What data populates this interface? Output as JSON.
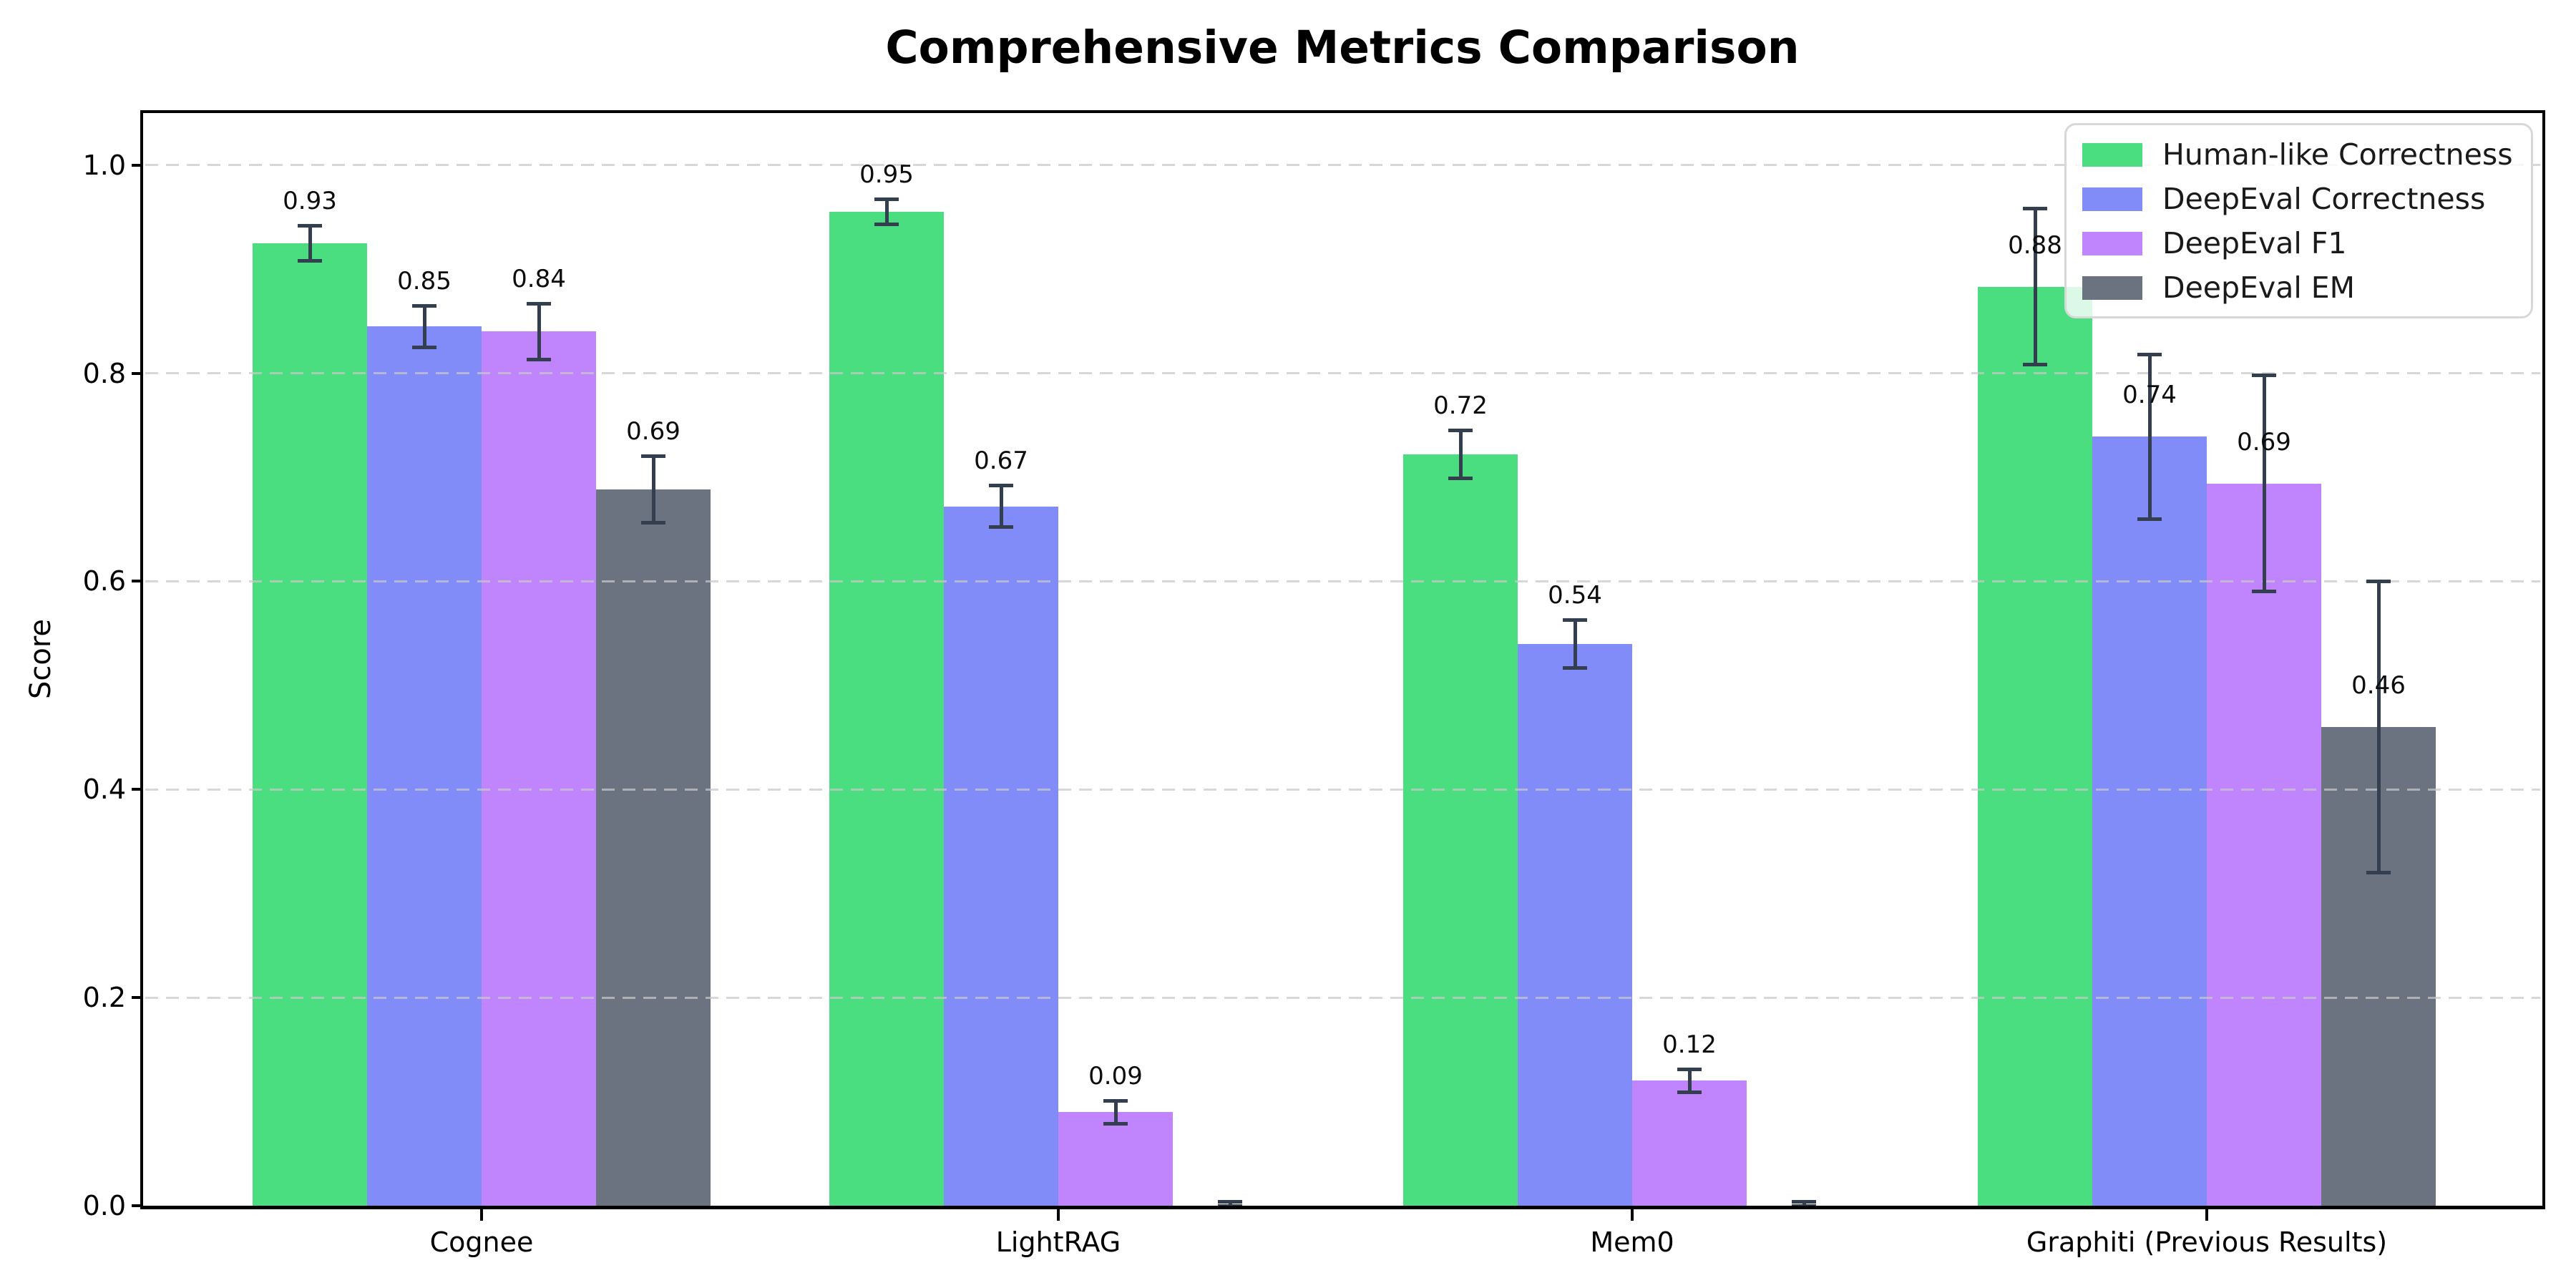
{
  "chart_data": {
    "type": "bar",
    "title": "Comprehensive Metrics Comparison",
    "xlabel": "",
    "ylabel": "Score",
    "categories": [
      "Cognee",
      "LightRAG",
      "Mem0",
      "Graphiti (Previous Results)"
    ],
    "series": [
      {
        "name": "Human-like Correctness",
        "color": "#4ade80",
        "values": [
          0.925,
          0.955,
          0.722,
          0.883
        ],
        "errors": [
          0.017,
          0.012,
          0.023,
          0.075
        ],
        "labels": [
          "0.93",
          "0.95",
          "0.72",
          "0.88"
        ]
      },
      {
        "name": "DeepEval Correctness",
        "color": "#818cf8",
        "values": [
          0.845,
          0.672,
          0.54,
          0.739
        ],
        "errors": [
          0.02,
          0.02,
          0.023,
          0.079
        ],
        "labels": [
          "0.85",
          "0.67",
          "0.54",
          "0.74"
        ]
      },
      {
        "name": "DeepEval F1",
        "color": "#c084fc",
        "values": [
          0.84,
          0.09,
          0.12,
          0.694
        ],
        "errors": [
          0.027,
          0.011,
          0.011,
          0.104
        ],
        "labels": [
          "0.84",
          "0.09",
          "0.12",
          "0.69"
        ]
      },
      {
        "name": "DeepEval EM",
        "color": "#6b7280",
        "values": [
          0.688,
          0.0,
          0.0,
          0.46
        ],
        "errors": [
          0.032,
          0.004,
          0.004,
          0.14
        ],
        "labels": [
          "0.69",
          "",
          "",
          "0.46"
        ]
      }
    ],
    "ytick_labels": [
      "0.0",
      "0.2",
      "0.4",
      "0.6",
      "0.8",
      "1.0"
    ],
    "ytick_values": [
      0.0,
      0.2,
      0.4,
      0.6,
      0.8,
      1.0
    ],
    "ylim": [
      0,
      1.05
    ],
    "grid": "horizontal dashed",
    "legend_position": "upper right",
    "style_colors": {
      "error_bar": "#333f4e",
      "gridline": "rgba(200,200,200,0.72)",
      "spine": "#000000",
      "background": "#ffffff"
    }
  }
}
